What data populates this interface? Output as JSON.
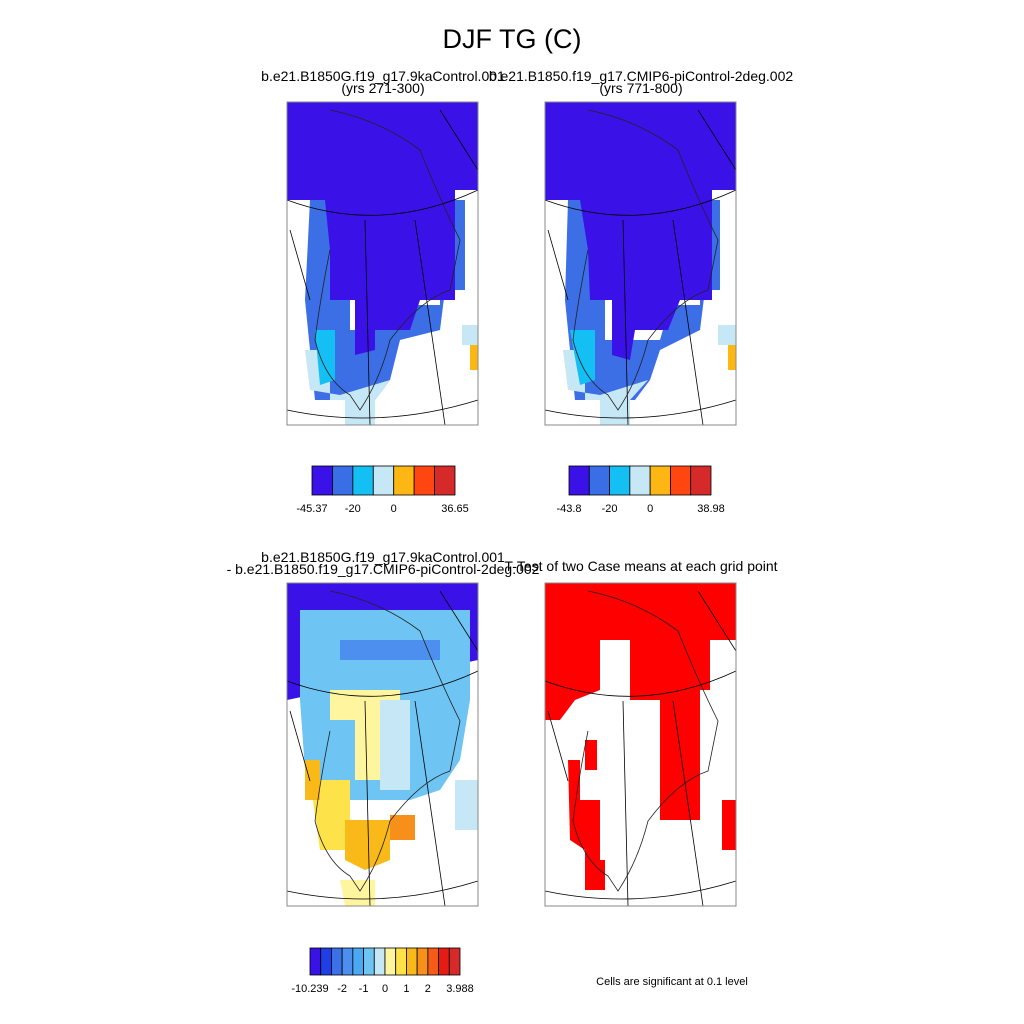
{
  "title": "DJF TG (C)",
  "panels": [
    {
      "title": [
        "b.e21.B1850G.f19_g17.9kaControl.001",
        "(yrs 271-300)"
      ],
      "colorbar": {
        "colors": [
          "#3a12e8",
          "#3a6ee6",
          "#14bff4",
          "#c6e7f5",
          "#fcb714",
          "#ff4510",
          "#d62a2a"
        ],
        "labels": [
          -45.37,
          -20,
          0,
          36.65
        ]
      }
    },
    {
      "title": [
        "b.e21.B1850.f19_g17.CMIP6-piControl-2deg.002",
        "(yrs 771-800)"
      ],
      "colorbar": {
        "colors": [
          "#3a12e8",
          "#3a6ee6",
          "#14bff4",
          "#c6e7f5",
          "#fcb714",
          "#ff4510",
          "#d62a2a"
        ],
        "labels": [
          -43.8,
          -20,
          0,
          38.98
        ]
      }
    },
    {
      "title": [
        "b.e21.B1850G.f19_g17.9kaControl.001",
        "- b.e21.B1850.f19_g17.CMIP6-piControl-2deg.002"
      ],
      "colorbar": {
        "colors": [
          "#3a12e8",
          "#1f3ee8",
          "#3c70e6",
          "#4d8fee",
          "#4aa9f2",
          "#6ec4f3",
          "#c6e7f5",
          "#fff59e",
          "#fde24a",
          "#f9b919",
          "#f7901a",
          "#f45a18",
          "#e41c14",
          "#d62a2a"
        ],
        "labels": [
          -10.239,
          -2,
          -1,
          0,
          1,
          2,
          3.988
        ]
      }
    },
    {
      "title": [
        "T-Test of two Case means at each grid point"
      ],
      "note": "Cells are significant at 0.1 level"
    }
  ]
}
